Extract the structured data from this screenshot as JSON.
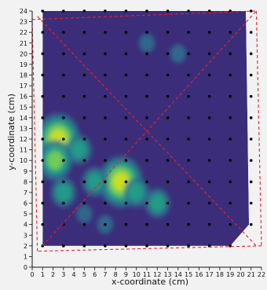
{
  "chart_data": {
    "type": "heatmap",
    "title": "",
    "xlabel": "x-coordinate (cm)",
    "ylabel": "y-coordinate (cm)",
    "xlim": [
      0,
      22
    ],
    "ylim": [
      0,
      24
    ],
    "x_ticks": [
      "0",
      "1",
      "2",
      "3",
      "4",
      "5",
      "6",
      "7",
      "8",
      "9",
      "10",
      "11",
      "12",
      "13",
      "14",
      "15",
      "16",
      "17",
      "18",
      "19",
      "20",
      "21",
      "22"
    ],
    "y_ticks": [
      "0",
      "1",
      "2",
      "3",
      "4",
      "5",
      "6",
      "7",
      "8",
      "9",
      "10",
      "11",
      "12",
      "13",
      "14",
      "15",
      "16",
      "17",
      "18",
      "19",
      "20",
      "21",
      "22",
      "23",
      "24"
    ],
    "colormap": "viridis",
    "background_color": "#3b2d79",
    "colormap_stops": [
      "#3b2d79",
      "#2d708e",
      "#20a387",
      "#7fd34e",
      "#d7e219"
    ],
    "grid_points": {
      "x": [
        1,
        3,
        5,
        7,
        9,
        11,
        13,
        15,
        17,
        19,
        21
      ],
      "y": [
        2,
        4,
        6,
        8,
        10,
        12,
        14,
        16,
        18,
        20,
        22,
        24
      ]
    },
    "hotspots": [
      {
        "x": 2.5,
        "y": 12,
        "intensity": 0.95
      },
      {
        "x": 2.2,
        "y": 10,
        "intensity": 0.75
      },
      {
        "x": 4.5,
        "y": 11,
        "intensity": 0.6
      },
      {
        "x": 8.5,
        "y": 8,
        "intensity": 0.9
      },
      {
        "x": 10,
        "y": 7,
        "intensity": 0.6
      },
      {
        "x": 12,
        "y": 6,
        "intensity": 0.45
      },
      {
        "x": 6,
        "y": 8,
        "intensity": 0.5
      },
      {
        "x": 3,
        "y": 7,
        "intensity": 0.45
      },
      {
        "x": 5,
        "y": 5,
        "intensity": 0.35
      },
      {
        "x": 7,
        "y": 4,
        "intensity": 0.25
      },
      {
        "x": 11,
        "y": 21,
        "intensity": 0.15
      },
      {
        "x": 14,
        "y": 20,
        "intensity": 0.15
      }
    ],
    "region_outline": [
      [
        1,
        24
      ],
      [
        20.5,
        24
      ],
      [
        20.8,
        4
      ],
      [
        19,
        2
      ],
      [
        1,
        2
      ]
    ],
    "dashed_lines": [
      [
        [
          0,
          23.2
        ],
        [
          21.5,
          24
        ]
      ],
      [
        [
          21.5,
          24
        ],
        [
          22,
          2
        ]
      ],
      [
        [
          22,
          2
        ],
        [
          0.5,
          1.5
        ]
      ],
      [
        [
          0.5,
          1.5
        ],
        [
          0,
          23.2
        ]
      ],
      [
        [
          0.5,
          23.5
        ],
        [
          21.5,
          2
        ]
      ],
      [
        [
          1,
          2
        ],
        [
          21.5,
          24
        ]
      ]
    ],
    "dashed_color": "#e8212b",
    "grid": false,
    "legend": "none"
  }
}
